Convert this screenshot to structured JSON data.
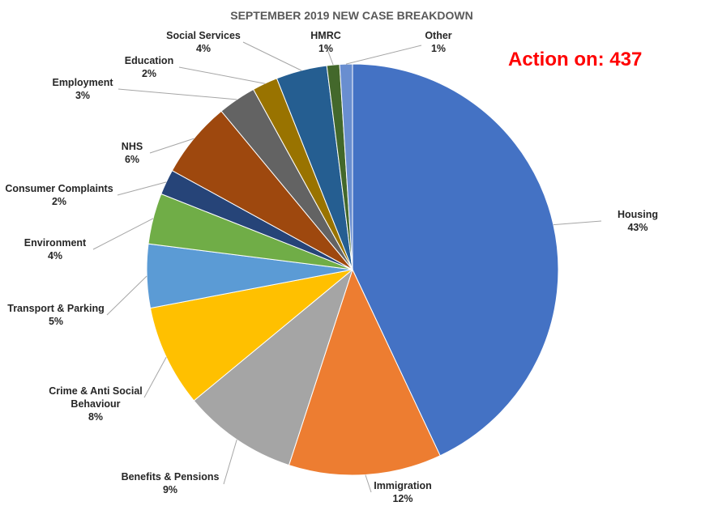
{
  "chart_data": {
    "type": "pie",
    "title": "SEPTEMBER 2019 NEW CASE BREAKDOWN",
    "annotation": "Action on: 437",
    "slices": [
      {
        "name": "Housing",
        "value": 43,
        "label_lines": [
          "Housing",
          "43%"
        ],
        "color": "#4472C4"
      },
      {
        "name": "Immigration",
        "value": 12,
        "label_lines": [
          "Immigration",
          "12%"
        ],
        "color": "#ED7D31"
      },
      {
        "name": "Benefits & Pensions",
        "value": 9,
        "label_lines": [
          "Benefits & Pensions",
          "9%"
        ],
        "color": "#A5A5A5"
      },
      {
        "name": "Crime & Anti Social Behaviour",
        "value": 8,
        "label_lines": [
          "Crime & Anti Social",
          "Behaviour",
          "8%"
        ],
        "color": "#FFC000"
      },
      {
        "name": "Transport & Parking",
        "value": 5,
        "label_lines": [
          "Transport & Parking",
          "5%"
        ],
        "color": "#5B9BD5"
      },
      {
        "name": "Environment",
        "value": 4,
        "label_lines": [
          "Environment",
          "4%"
        ],
        "color": "#70AD47"
      },
      {
        "name": "Consumer Complaints",
        "value": 2,
        "label_lines": [
          "Consumer Complaints",
          "2%"
        ],
        "color": "#264478"
      },
      {
        "name": "NHS",
        "value": 6,
        "label_lines": [
          "NHS",
          "6%"
        ],
        "color": "#9E480E"
      },
      {
        "name": "Employment",
        "value": 3,
        "label_lines": [
          "Employment",
          "3%"
        ],
        "color": "#636363"
      },
      {
        "name": "Education",
        "value": 2,
        "label_lines": [
          "Education",
          "2%"
        ],
        "color": "#997300"
      },
      {
        "name": "Social Services",
        "value": 4,
        "label_lines": [
          "Social Services",
          "4%"
        ],
        "color": "#255E91"
      },
      {
        "name": "HMRC",
        "value": 1,
        "label_lines": [
          "HMRC",
          "1%"
        ],
        "color": "#43682B"
      },
      {
        "name": "Other",
        "value": 1,
        "label_lines": [
          "Other",
          "1%"
        ],
        "color": "#698ED0"
      }
    ],
    "start_angle_deg": 0,
    "direction": "clockwise",
    "legend": "none"
  }
}
